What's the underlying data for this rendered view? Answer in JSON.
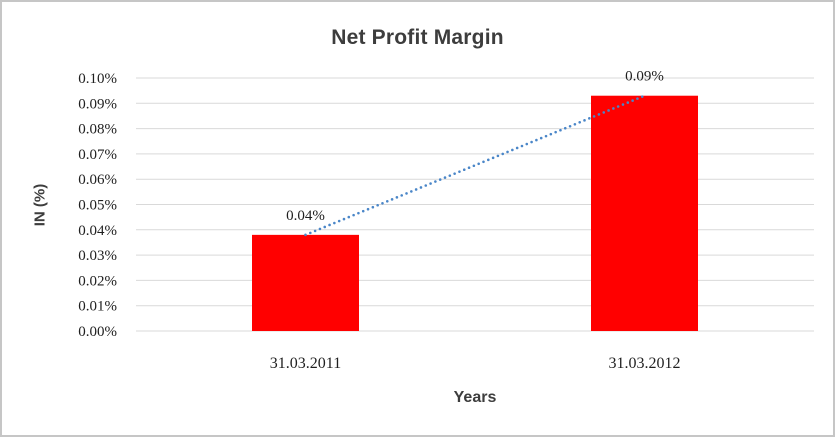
{
  "window": {
    "background": "#ffffff",
    "border_color": "#c6c6c6"
  },
  "chart_data": {
    "type": "bar",
    "title": "Net Profit Margin",
    "xlabel": "Years",
    "ylabel": "IN (%)",
    "categories": [
      "31.03.2011",
      "31.03.2012"
    ],
    "values": [
      0.038,
      0.093
    ],
    "data_labels": [
      "0.04%",
      "0.09%"
    ],
    "y_ticks": [
      "0.00%",
      "0.01%",
      "0.02%",
      "0.03%",
      "0.04%",
      "0.05%",
      "0.06%",
      "0.07%",
      "0.08%",
      "0.09%",
      "0.10%"
    ],
    "ylim": [
      0,
      0.1
    ],
    "grid": true,
    "legend_position": "none",
    "bar_color": "#ff0000",
    "gridline_color": "#d9d9d9",
    "trendline": {
      "style": "dotted",
      "color": "#4a86c8",
      "from_value": 0.038,
      "to_value": 0.093
    }
  }
}
